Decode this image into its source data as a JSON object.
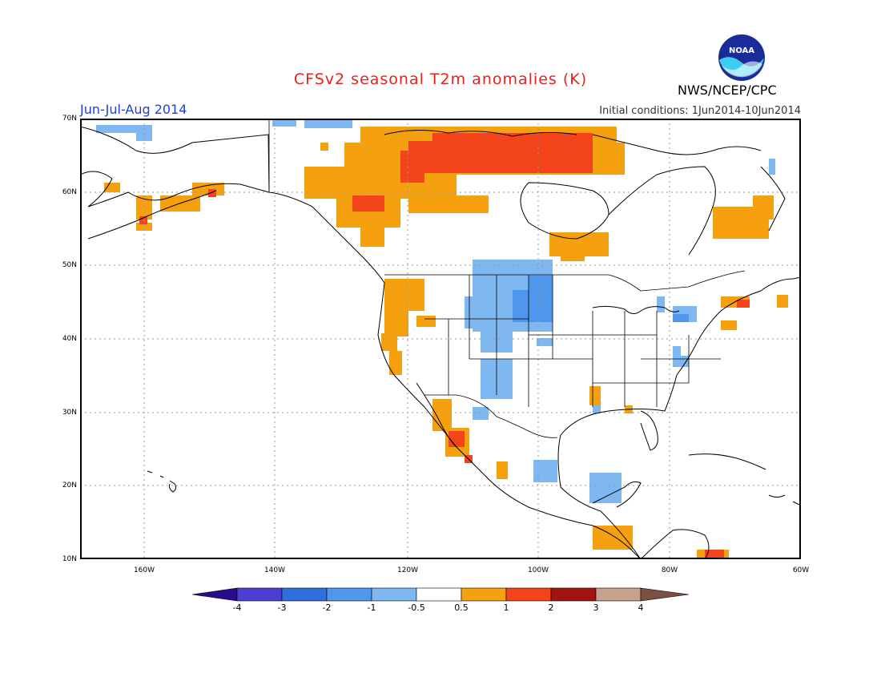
{
  "header": {
    "title": "CFSv2 seasonal T2m anomalies (K)",
    "period": "Jun-Jul-Aug 2014",
    "initial_conditions": "Initial conditions: 1Jun2014-10Jun2014",
    "agency": "NWS/NCEP/CPC",
    "logo_text": "NOAA"
  },
  "map": {
    "projection": "latitude-longitude",
    "lon_range": [
      -172,
      -60
    ],
    "lat_range": [
      10,
      70
    ],
    "lat_labels": [
      "70N",
      "60N",
      "50N",
      "40N",
      "30N",
      "20N",
      "10N"
    ],
    "lon_labels": [
      "160W",
      "140W",
      "120W",
      "100W",
      "80W",
      "60W"
    ],
    "grid": "dotted"
  },
  "colorbar": {
    "labels": [
      "-4",
      "-3",
      "-2",
      "-1",
      "-0.5",
      "0.5",
      "1",
      "2",
      "3",
      "4"
    ],
    "colors": [
      "#2a0b8a",
      "#4b3fd0",
      "#2f6fdc",
      "#4f97ec",
      "#7fb8f0",
      "#ffffff",
      "#f5a00e",
      "#f4441b",
      "#a3140f",
      "#c7a08e",
      "#7a5040"
    ]
  },
  "anomaly_colors": {
    "cold_mid": "#7fb8f0",
    "cold_strong": "#4f97ec",
    "warm_mid": "#f5a00e",
    "warm_strong": "#f4441b"
  }
}
